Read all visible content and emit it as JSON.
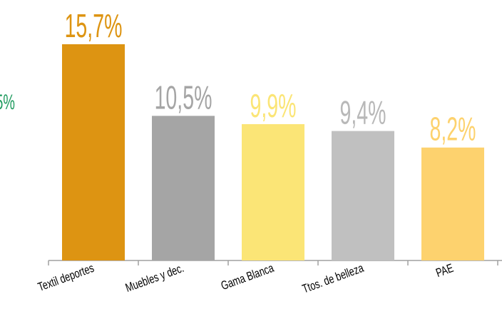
{
  "chart_data": {
    "type": "bar",
    "categories": [
      "Textil deportes",
      "Muebles y dec.",
      "Gama Blanca",
      "Ttos. de belleza",
      "PAE"
    ],
    "values": [
      15.7,
      10.5,
      9.9,
      9.4,
      8.2
    ],
    "value_labels": [
      "15,7%",
      "10,5%",
      "9,9%",
      "9,4%",
      "8,2%"
    ],
    "colors": [
      "#dd9412",
      "#a5a5a5",
      "#fbe576",
      "#c0c0c0",
      "#fdd26e"
    ],
    "label_colors": [
      "#dd9412",
      "#a5a5a5",
      "#fbe576",
      "#b8b8b8",
      "#fdd26e"
    ],
    "annotations": [
      {
        "text": "5%",
        "color": "#1e9a5e"
      }
    ]
  }
}
